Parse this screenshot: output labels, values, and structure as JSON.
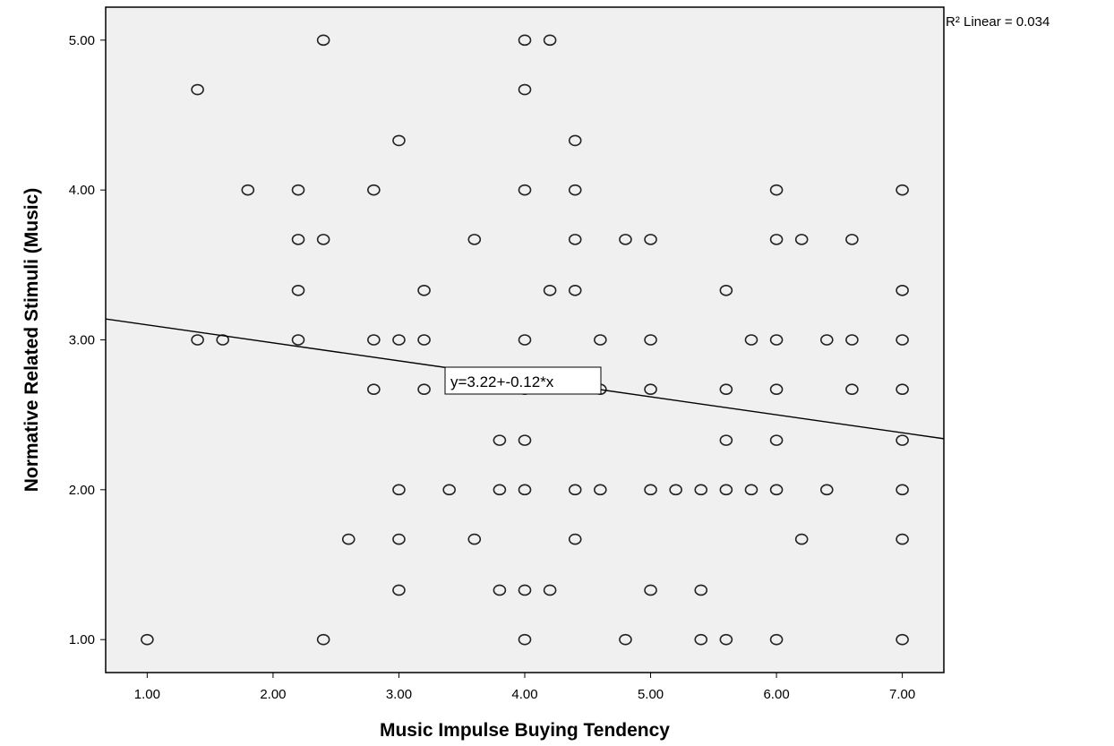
{
  "chart_data": {
    "type": "scatter",
    "xlabel": "Music Impulse Buying Tendency",
    "ylabel": "Normative Related Stimuli (Music)",
    "xlim": [
      0.67,
      7.33
    ],
    "ylim": [
      0.78,
      5.22
    ],
    "xticks": [
      1,
      2,
      3,
      4,
      5,
      6,
      7
    ],
    "yticks": [
      1,
      2,
      3,
      4,
      5
    ],
    "xtick_labels": [
      "1.00",
      "2.00",
      "3.00",
      "4.00",
      "5.00",
      "6.00",
      "7.00"
    ],
    "ytick_labels": [
      "1.00",
      "2.00",
      "3.00",
      "4.00",
      "5.00"
    ],
    "grid": false,
    "background": "#f0f0f0",
    "marker": "open-circle",
    "fit_line": {
      "intercept": 3.22,
      "slope": -0.12,
      "equation_label": "y=3.22+-0.12*x",
      "r2_label": "R² Linear = 0.034"
    },
    "points": [
      [
        1.0,
        1.0
      ],
      [
        1.4,
        4.67
      ],
      [
        1.4,
        3.0
      ],
      [
        1.6,
        3.0
      ],
      [
        1.8,
        4.0
      ],
      [
        2.2,
        4.0
      ],
      [
        2.2,
        3.67
      ],
      [
        2.2,
        3.33
      ],
      [
        2.2,
        3.0
      ],
      [
        2.4,
        5.0
      ],
      [
        2.4,
        3.67
      ],
      [
        2.4,
        1.0
      ],
      [
        2.6,
        1.67
      ],
      [
        2.8,
        4.0
      ],
      [
        2.8,
        3.0
      ],
      [
        2.8,
        2.67
      ],
      [
        3.0,
        4.33
      ],
      [
        3.0,
        3.0
      ],
      [
        3.0,
        2.0
      ],
      [
        3.0,
        1.67
      ],
      [
        3.0,
        1.33
      ],
      [
        3.2,
        3.33
      ],
      [
        3.2,
        3.0
      ],
      [
        3.2,
        2.67
      ],
      [
        3.4,
        2.0
      ],
      [
        3.6,
        3.67
      ],
      [
        3.6,
        1.67
      ],
      [
        3.8,
        2.33
      ],
      [
        3.8,
        2.0
      ],
      [
        3.8,
        1.33
      ],
      [
        4.0,
        5.0
      ],
      [
        4.0,
        4.67
      ],
      [
        4.0,
        4.0
      ],
      [
        4.0,
        3.0
      ],
      [
        4.0,
        2.67
      ],
      [
        4.0,
        2.33
      ],
      [
        4.0,
        2.0
      ],
      [
        4.0,
        1.33
      ],
      [
        4.0,
        1.0
      ],
      [
        4.2,
        5.0
      ],
      [
        4.2,
        3.33
      ],
      [
        4.2,
        1.33
      ],
      [
        4.4,
        4.33
      ],
      [
        4.4,
        4.0
      ],
      [
        4.4,
        3.67
      ],
      [
        4.4,
        3.33
      ],
      [
        4.4,
        2.0
      ],
      [
        4.4,
        1.67
      ],
      [
        4.6,
        3.0
      ],
      [
        4.6,
        2.67
      ],
      [
        4.6,
        2.0
      ],
      [
        4.8,
        3.67
      ],
      [
        4.8,
        1.0
      ],
      [
        5.0,
        3.67
      ],
      [
        5.0,
        3.0
      ],
      [
        5.0,
        2.67
      ],
      [
        5.0,
        2.0
      ],
      [
        5.0,
        1.33
      ],
      [
        5.2,
        2.0
      ],
      [
        5.4,
        2.0
      ],
      [
        5.4,
        1.33
      ],
      [
        5.4,
        1.0
      ],
      [
        5.6,
        3.33
      ],
      [
        5.6,
        2.67
      ],
      [
        5.6,
        2.33
      ],
      [
        5.6,
        2.0
      ],
      [
        5.6,
        1.0
      ],
      [
        5.8,
        3.0
      ],
      [
        5.8,
        2.0
      ],
      [
        6.0,
        4.0
      ],
      [
        6.0,
        3.67
      ],
      [
        6.0,
        3.0
      ],
      [
        6.0,
        2.67
      ],
      [
        6.0,
        2.33
      ],
      [
        6.0,
        2.0
      ],
      [
        6.0,
        1.0
      ],
      [
        6.2,
        3.67
      ],
      [
        6.2,
        1.67
      ],
      [
        6.4,
        3.0
      ],
      [
        6.4,
        2.0
      ],
      [
        6.6,
        3.67
      ],
      [
        6.6,
        3.0
      ],
      [
        6.6,
        2.67
      ],
      [
        7.0,
        4.0
      ],
      [
        7.0,
        3.33
      ],
      [
        7.0,
        3.0
      ],
      [
        7.0,
        2.67
      ],
      [
        7.0,
        2.33
      ],
      [
        7.0,
        2.0
      ],
      [
        7.0,
        1.67
      ],
      [
        7.0,
        1.0
      ]
    ]
  }
}
